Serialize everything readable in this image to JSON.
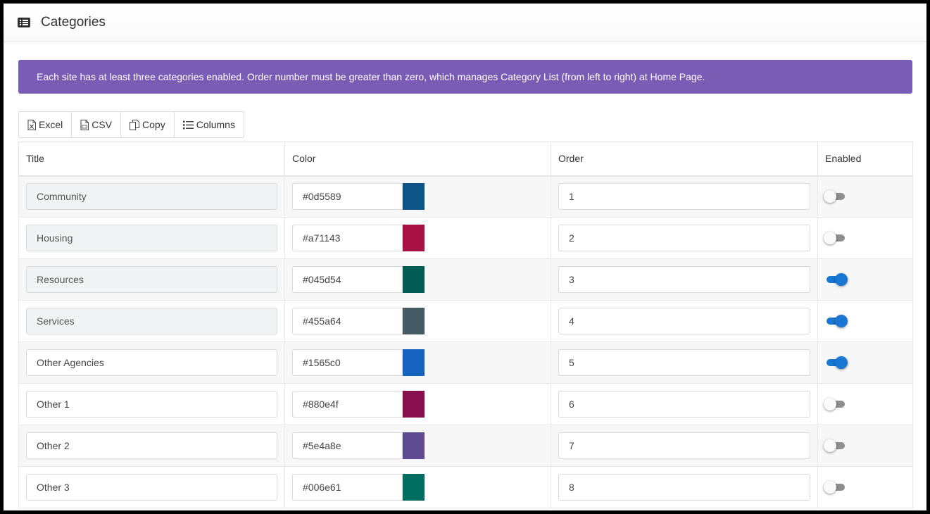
{
  "header": {
    "title": "Categories",
    "icon": "list-icon"
  },
  "alert": {
    "text": "Each site has at least three categories enabled. Order number must be greater than zero, which manages Category List (from left to right) at Home Page."
  },
  "toolbar": [
    {
      "label": "Excel",
      "icon": "excel-icon"
    },
    {
      "label": "CSV",
      "icon": "csv-icon"
    },
    {
      "label": "Copy",
      "icon": "copy-icon"
    },
    {
      "label": "Columns",
      "icon": "columns-icon"
    }
  ],
  "table": {
    "columns": [
      "Title",
      "Color",
      "Order",
      "Enabled"
    ],
    "rows": [
      {
        "title": "Community",
        "readonly": true,
        "color": "#0d5589",
        "order": "1",
        "enabled": false
      },
      {
        "title": "Housing",
        "readonly": true,
        "color": "#a71143",
        "order": "2",
        "enabled": false
      },
      {
        "title": "Resources",
        "readonly": true,
        "color": "#045d54",
        "order": "3",
        "enabled": true
      },
      {
        "title": "Services",
        "readonly": true,
        "color": "#455a64",
        "order": "4",
        "enabled": true
      },
      {
        "title": "Other Agencies",
        "readonly": false,
        "color": "#1565c0",
        "order": "5",
        "enabled": true
      },
      {
        "title": "Other 1",
        "readonly": false,
        "color": "#880e4f",
        "order": "6",
        "enabled": false
      },
      {
        "title": "Other 2",
        "readonly": false,
        "color": "#5e4a8e",
        "order": "7",
        "enabled": false
      },
      {
        "title": "Other 3",
        "readonly": false,
        "color": "#006e61",
        "order": "8",
        "enabled": false
      }
    ]
  },
  "colors": {
    "alert_bg": "#7b5cb5",
    "toggle_on": "#1976d2"
  }
}
